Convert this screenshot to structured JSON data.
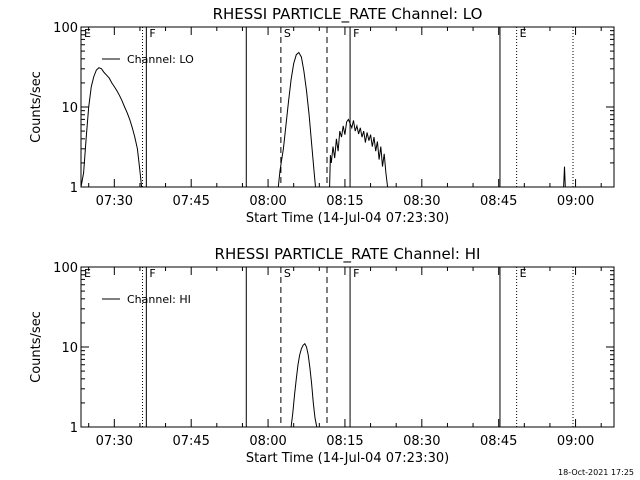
{
  "footer_date": "18-Oct-2021 17:25",
  "chart_data": [
    {
      "type": "line",
      "title": "RHESSI PARTICLE_RATE Channel: LO",
      "xlabel": "Start Time (14-Jul-04 07:23:30)",
      "ylabel": "Counts/sec",
      "y_scale": "log",
      "ylim": [
        1,
        100
      ],
      "y_ticks": [
        {
          "v": 1,
          "label": "1"
        },
        {
          "v": 10,
          "label": "10"
        },
        {
          "v": 100,
          "label": "100"
        }
      ],
      "xlim": [
        "07:23:30",
        "09:07:30"
      ],
      "x_ticks": [
        "07:30",
        "07:45",
        "08:00",
        "08:15",
        "08:30",
        "08:45",
        "09:00"
      ],
      "legend": {
        "label": "Channel: LO",
        "position": "top-left"
      },
      "markers": [
        {
          "time": "07:23:30",
          "style": "solid",
          "label": "E"
        },
        {
          "time": "07:35:30",
          "style": "dotted",
          "label": ""
        },
        {
          "time": "07:36:15",
          "style": "solid",
          "label": "F"
        },
        {
          "time": "07:55:45",
          "style": "solid",
          "label": ""
        },
        {
          "time": "08:02:30",
          "style": "dashed",
          "label": "S"
        },
        {
          "time": "08:11:30",
          "style": "dashed",
          "label": ""
        },
        {
          "time": "08:16:00",
          "style": "solid",
          "label": "F"
        },
        {
          "time": "08:45:15",
          "style": "solid",
          "label": ""
        },
        {
          "time": "08:48:30",
          "style": "dotted",
          "label": "E"
        },
        {
          "time": "08:59:30",
          "style": "dotted",
          "label": ""
        }
      ],
      "series": [
        {
          "segments": [
            [
              [
                "07:23:30",
                1
              ],
              [
                "07:24:00",
                1.5
              ],
              [
                "07:24:30",
                4
              ],
              [
                "07:25:00",
                10
              ],
              [
                "07:25:30",
                18
              ],
              [
                "07:26:00",
                24
              ],
              [
                "07:26:30",
                29
              ],
              [
                "07:27:00",
                31
              ],
              [
                "07:27:30",
                30
              ],
              [
                "07:28:00",
                27
              ],
              [
                "07:28:30",
                25
              ],
              [
                "07:29:00",
                23
              ],
              [
                "07:29:30",
                20
              ],
              [
                "07:30:00",
                18
              ],
              [
                "07:30:30",
                16
              ],
              [
                "07:31:00",
                14
              ],
              [
                "07:31:30",
                12
              ],
              [
                "07:32:00",
                10
              ],
              [
                "07:32:30",
                8.5
              ],
              [
                "07:33:00",
                7
              ],
              [
                "07:33:30",
                5.5
              ],
              [
                "07:34:00",
                4.2
              ],
              [
                "07:34:30",
                3
              ],
              [
                "07:35:00",
                1.6
              ],
              [
                "07:35:20",
                1
              ]
            ],
            [
              [
                "08:02:00",
                1
              ],
              [
                "08:02:20",
                1.6
              ],
              [
                "08:02:40",
                2.2
              ],
              [
                "08:03:00",
                3
              ],
              [
                "08:03:30",
                6
              ],
              [
                "08:04:00",
                12
              ],
              [
                "08:04:30",
                22
              ],
              [
                "08:05:00",
                35
              ],
              [
                "08:05:30",
                45
              ],
              [
                "08:06:00",
                48
              ],
              [
                "08:06:30",
                42
              ],
              [
                "08:07:00",
                28
              ],
              [
                "08:07:30",
                16
              ],
              [
                "08:08:00",
                8
              ],
              [
                "08:08:30",
                3.5
              ],
              [
                "08:09:00",
                1.5
              ],
              [
                "08:09:15",
                1
              ]
            ],
            [
              [
                "08:12:00",
                1
              ],
              [
                "08:12:10",
                2.5
              ],
              [
                "08:12:20",
                2
              ],
              [
                "08:12:40",
                3.2
              ],
              [
                "08:13:00",
                2.3
              ],
              [
                "08:13:20",
                4
              ],
              [
                "08:13:40",
                2.8
              ],
              [
                "08:14:00",
                5
              ],
              [
                "08:14:20",
                4.2
              ],
              [
                "08:14:40",
                5.8
              ],
              [
                "08:15:00",
                4.5
              ],
              [
                "08:15:20",
                6.5
              ],
              [
                "08:15:40",
                7
              ],
              [
                "08:16:00",
                6.2
              ],
              [
                "08:16:20",
                5.5
              ],
              [
                "08:16:40",
                6.8
              ],
              [
                "08:17:00",
                5
              ],
              [
                "08:17:20",
                5.8
              ],
              [
                "08:17:40",
                4.6
              ],
              [
                "08:18:00",
                5.5
              ],
              [
                "08:18:20",
                4.2
              ],
              [
                "08:18:40",
                5
              ],
              [
                "08:19:00",
                3.6
              ],
              [
                "08:19:20",
                4.8
              ],
              [
                "08:19:40",
                3.8
              ],
              [
                "08:20:00",
                4.5
              ],
              [
                "08:20:20",
                3.2
              ],
              [
                "08:20:40",
                4.2
              ],
              [
                "08:21:00",
                2.8
              ],
              [
                "08:21:20",
                3.7
              ],
              [
                "08:21:40",
                2.2
              ],
              [
                "08:22:00",
                3.2
              ],
              [
                "08:22:20",
                1.8
              ],
              [
                "08:22:40",
                2.6
              ],
              [
                "08:23:00",
                1.5
              ],
              [
                "08:23:20",
                1
              ]
            ],
            [
              [
                "08:57:40",
                1
              ],
              [
                "08:57:50",
                1.8
              ],
              [
                "08:58:00",
                1
              ]
            ]
          ]
        }
      ]
    },
    {
      "type": "line",
      "title": "RHESSI PARTICLE_RATE Channel: HI",
      "xlabel": "Start Time (14-Jul-04 07:23:30)",
      "ylabel": "Counts/sec",
      "y_scale": "log",
      "ylim": [
        1,
        100
      ],
      "y_ticks": [
        {
          "v": 1,
          "label": "1"
        },
        {
          "v": 10,
          "label": "10"
        },
        {
          "v": 100,
          "label": "100"
        }
      ],
      "xlim": [
        "07:23:30",
        "09:07:30"
      ],
      "x_ticks": [
        "07:30",
        "07:45",
        "08:00",
        "08:15",
        "08:30",
        "08:45",
        "09:00"
      ],
      "legend": {
        "label": "Channel: HI",
        "position": "top-left"
      },
      "markers": [
        {
          "time": "07:23:30",
          "style": "solid",
          "label": "E"
        },
        {
          "time": "07:35:30",
          "style": "dotted",
          "label": ""
        },
        {
          "time": "07:36:15",
          "style": "solid",
          "label": "F"
        },
        {
          "time": "07:55:45",
          "style": "solid",
          "label": ""
        },
        {
          "time": "08:02:30",
          "style": "dashed",
          "label": "S"
        },
        {
          "time": "08:11:30",
          "style": "dashed",
          "label": ""
        },
        {
          "time": "08:16:00",
          "style": "solid",
          "label": "F"
        },
        {
          "time": "08:45:15",
          "style": "solid",
          "label": ""
        },
        {
          "time": "08:48:30",
          "style": "dotted",
          "label": "E"
        },
        {
          "time": "08:59:30",
          "style": "dotted",
          "label": ""
        }
      ],
      "series": [
        {
          "segments": [
            [
              [
                "08:04:30",
                1
              ],
              [
                "08:04:50",
                1.5
              ],
              [
                "08:05:10",
                2.5
              ],
              [
                "08:05:30",
                4
              ],
              [
                "08:05:50",
                6
              ],
              [
                "08:06:10",
                8
              ],
              [
                "08:06:30",
                9.5
              ],
              [
                "08:06:50",
                10.5
              ],
              [
                "08:07:10",
                11
              ],
              [
                "08:07:30",
                10
              ],
              [
                "08:07:50",
                8
              ],
              [
                "08:08:10",
                5.5
              ],
              [
                "08:08:30",
                3.5
              ],
              [
                "08:08:50",
                2
              ],
              [
                "08:09:10",
                1.3
              ],
              [
                "08:09:30",
                1
              ]
            ]
          ]
        }
      ]
    }
  ]
}
